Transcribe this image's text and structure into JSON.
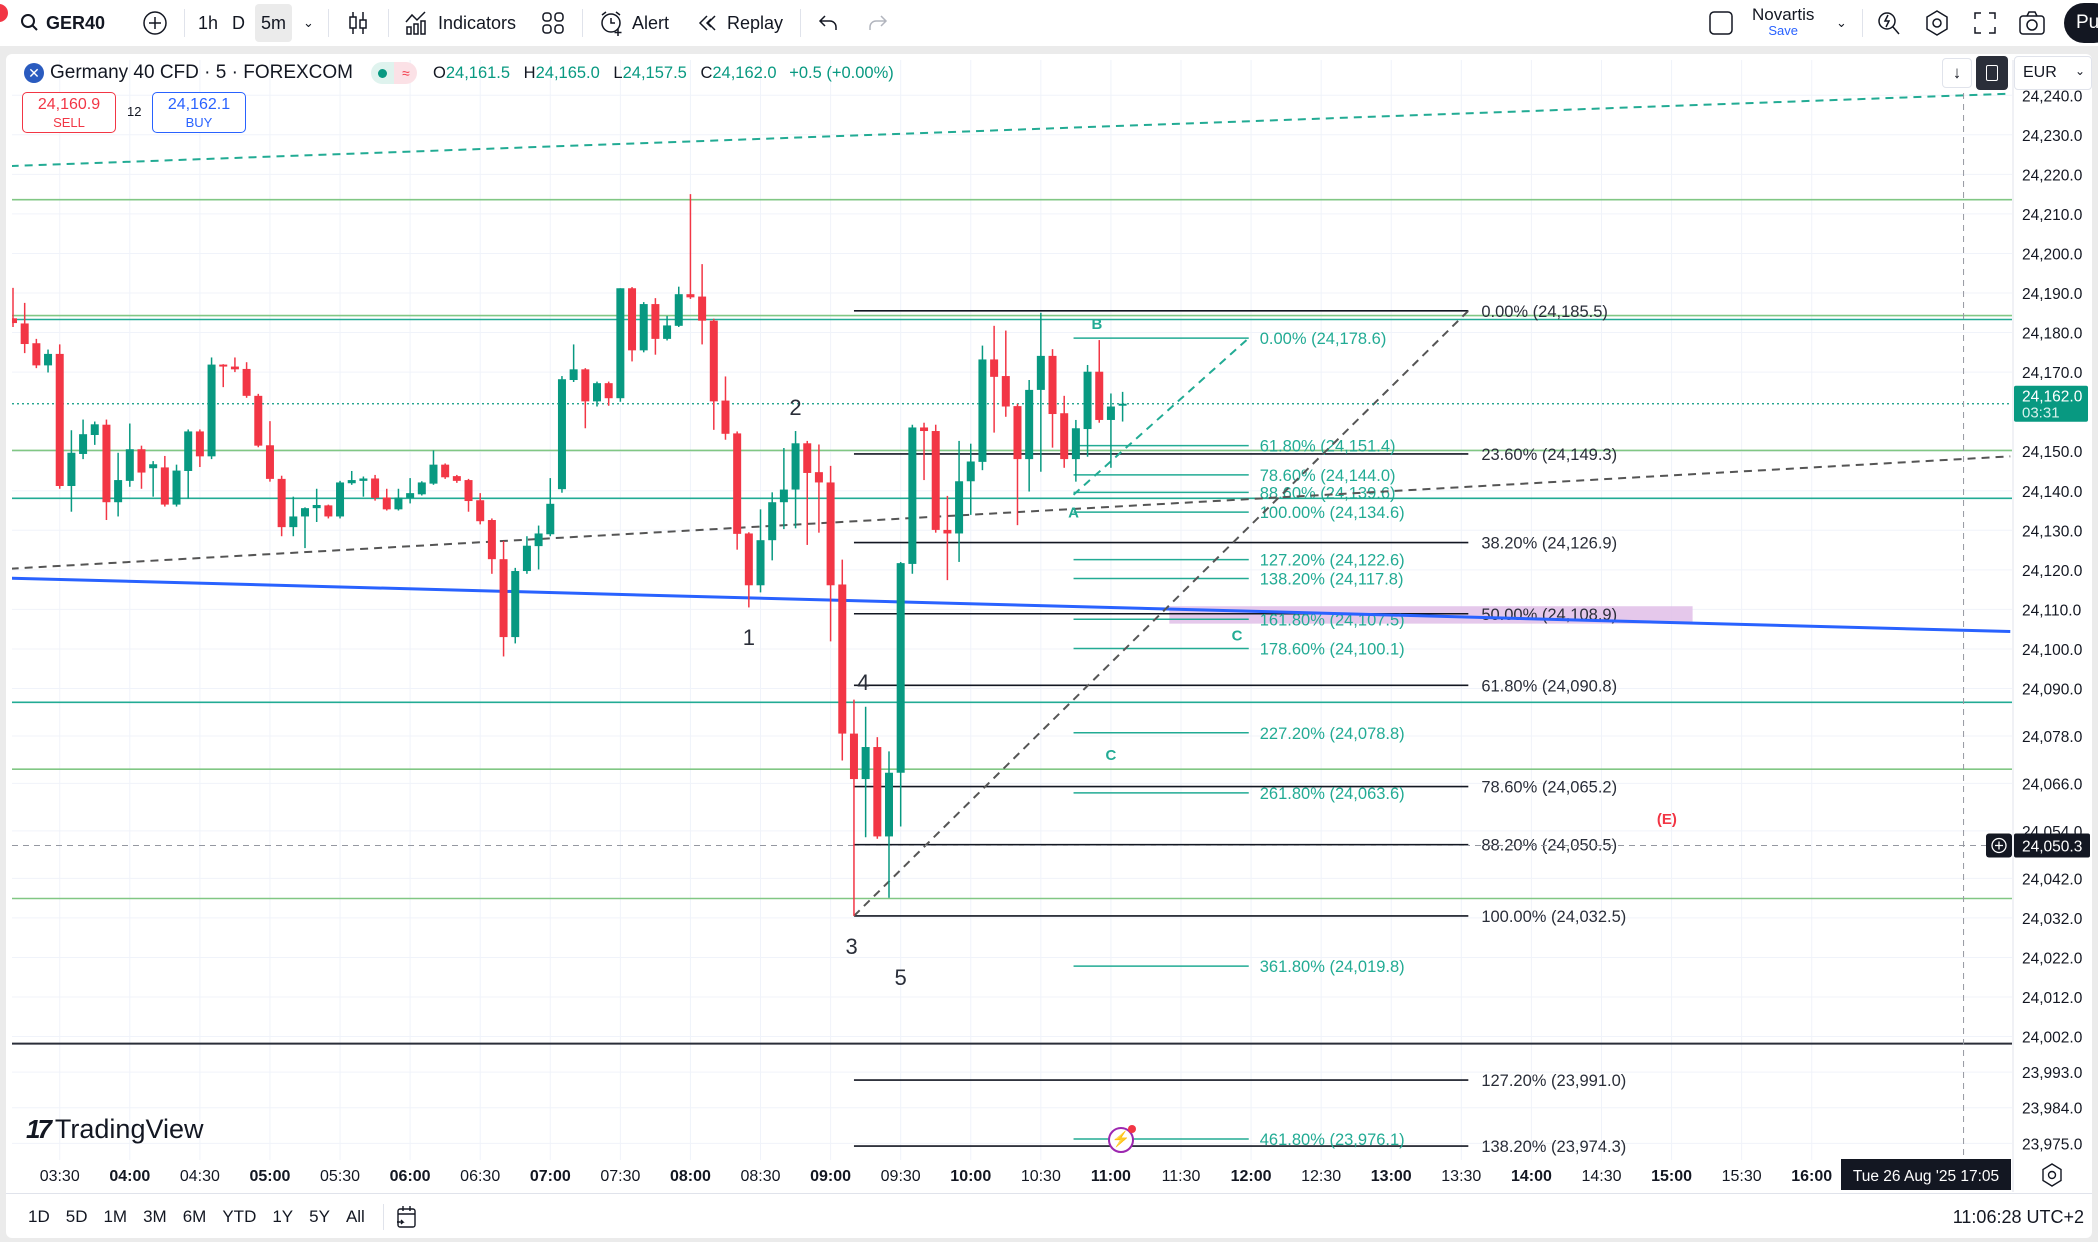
{
  "toolbar": {
    "symbol": "GER40",
    "intervals": [
      "1h",
      "D",
      "5m"
    ],
    "active_interval": "5m",
    "indicators_label": "Indicators",
    "alert_label": "Alert",
    "replay_label": "Replay",
    "layout_name": "Novartis",
    "layout_save": "Save",
    "publish_label": "Pu"
  },
  "legend": {
    "title": "Germany 40 CFD · 5 · FOREXCOM",
    "o_label": "O",
    "o": "24,161.5",
    "h_label": "H",
    "h": "24,165.0",
    "l_label": "L",
    "l": "24,157.5",
    "c_label": "C",
    "c": "24,162.0",
    "change": "+0.5 (+0.00%)",
    "sell_price": "24,160.9",
    "sell_label": "SELL",
    "spread": "12",
    "buy_price": "24,162.1",
    "buy_label": "BUY"
  },
  "currency": "EUR",
  "colors": {
    "up": "#089981",
    "down": "#f23645",
    "teal": "#22ab94",
    "green_line": "#81c784",
    "blue": "#2962ff",
    "pink": "#e1bee7",
    "fib_black": "#131722"
  },
  "chart_data": {
    "type": "candlestick",
    "interval_min": 5,
    "first_bar_time": "03:10",
    "y_range": [
      23972,
      24245
    ],
    "ohlc": [
      [
        24183.6,
        24191.3,
        24181.4,
        24182.4
      ],
      [
        24182.3,
        24187.5,
        24174.8,
        24177.1
      ],
      [
        24177.3,
        24178.4,
        24171.0,
        24171.7
      ],
      [
        24171.7,
        24175.7,
        24169.9,
        24174.6
      ],
      [
        24174.6,
        24177.0,
        24140.5,
        24141.2
      ],
      [
        24141.2,
        24155.3,
        24134.7,
        24149.6
      ],
      [
        24149.3,
        24158.0,
        24148.0,
        24154.3
      ],
      [
        24154.1,
        24157.5,
        24151.6,
        24156.8
      ],
      [
        24156.7,
        24158.0,
        24132.6,
        24137.1
      ],
      [
        24137.1,
        24149.6,
        24133.5,
        24142.7
      ],
      [
        24142.5,
        24157.0,
        24141.0,
        24150.5
      ],
      [
        24150.5,
        24151.4,
        24140.5,
        24144.6
      ],
      [
        24145.7,
        24147.5,
        24138.5,
        24146.7
      ],
      [
        24145.9,
        24148.8,
        24136.0,
        24136.5
      ],
      [
        24136.5,
        24146.6,
        24136.0,
        24145.1
      ],
      [
        24145.0,
        24155.5,
        24138.0,
        24155.0
      ],
      [
        24155.0,
        24155.5,
        24146.0,
        24148.7
      ],
      [
        24148.7,
        24173.7,
        24148.0,
        24171.9
      ],
      [
        24171.9,
        24172.0,
        24166.2,
        24171.4
      ],
      [
        24171.4,
        24173.7,
        24170.0,
        24170.7
      ],
      [
        24170.8,
        24172.5,
        24163.5,
        24164.0
      ],
      [
        24164.0,
        24164.5,
        24151.0,
        24151.4
      ],
      [
        24151.5,
        24157.6,
        24142.3,
        24143.0
      ],
      [
        24143.0,
        24143.8,
        24128.5,
        24130.8
      ],
      [
        24130.8,
        24138.5,
        24128.5,
        24133.5
      ],
      [
        24133.5,
        24135.8,
        24125.5,
        24135.6
      ],
      [
        24135.6,
        24140.5,
        24132.1,
        24136.4
      ],
      [
        24136.3,
        24136.5,
        24133.0,
        24133.5
      ],
      [
        24133.5,
        24142.5,
        24133.0,
        24142.1
      ],
      [
        24141.9,
        24145.0,
        24141.5,
        24142.7
      ],
      [
        24142.5,
        24143.6,
        24138.5,
        24143.1
      ],
      [
        24143.1,
        24144.0,
        24137.5,
        24138.2
      ],
      [
        24138.3,
        24140.5,
        24135.0,
        24135.3
      ],
      [
        24135.3,
        24140.5,
        24135.0,
        24138.3
      ],
      [
        24138.2,
        24143.2,
        24136.8,
        24139.4
      ],
      [
        24139.1,
        24142.4,
        24138.8,
        24142.1
      ],
      [
        24141.8,
        24150.2,
        24141.5,
        24146.6
      ],
      [
        24146.6,
        24146.9,
        24143.0,
        24143.4
      ],
      [
        24143.7,
        24144.0,
        24142.0,
        24142.5
      ],
      [
        24142.7,
        24143.0,
        24134.7,
        24137.4
      ],
      [
        24137.6,
        24139.4,
        24131.5,
        24132.3
      ],
      [
        24132.6,
        24133.0,
        24119.0,
        24122.7
      ],
      [
        24122.7,
        24127.3,
        24098.1,
        24103.0
      ],
      [
        24103.0,
        24120.5,
        24101.4,
        24119.7
      ],
      [
        24119.7,
        24128.5,
        24119.0,
        24126.1
      ],
      [
        24126.0,
        24131.2,
        24120.1,
        24129.2
      ],
      [
        24129.0,
        24143.2,
        24128.5,
        24136.7
      ],
      [
        24140.4,
        24169.0,
        24139.5,
        24168.2
      ],
      [
        24168.0,
        24177.0,
        24167.5,
        24170.7
      ],
      [
        24170.7,
        24171.0,
        24155.8,
        24162.6
      ],
      [
        24162.6,
        24167.6,
        24161.3,
        24167.2
      ],
      [
        24167.2,
        24167.6,
        24161.5,
        24163.4
      ],
      [
        24163.4,
        24191.2,
        24162.5,
        24191.2
      ],
      [
        24191.2,
        24191.5,
        24172.7,
        24175.5
      ],
      [
        24175.5,
        24187.7,
        24175.0,
        24187.2
      ],
      [
        24187.2,
        24188.7,
        24174.4,
        24178.4
      ],
      [
        24178.4,
        24184.2,
        24178.0,
        24181.8
      ],
      [
        24181.7,
        24191.6,
        24181.4,
        24189.7
      ],
      [
        24189.7,
        24215.0,
        24188.5,
        24188.9
      ],
      [
        24189.1,
        24197.3,
        24177.0,
        24183.0
      ],
      [
        24183.0,
        24183.5,
        24155.4,
        24162.6
      ],
      [
        24162.8,
        24168.9,
        24152.9,
        24154.4
      ],
      [
        24154.5,
        24155.0,
        24125.1,
        24129.1
      ],
      [
        24129.2,
        24129.5,
        24110.5,
        24116.1
      ],
      [
        24116.1,
        24135.3,
        24114.3,
        24127.5
      ],
      [
        24127.5,
        24139.6,
        24122.4,
        24137.1
      ],
      [
        24137.1,
        24150.8,
        24130.3,
        24140.3
      ],
      [
        24140.3,
        24155.1,
        24130.5,
        24152.0
      ],
      [
        24152.0,
        24152.6,
        24126.3,
        24144.5
      ],
      [
        24144.7,
        24151.7,
        24129.4,
        24142.1
      ],
      [
        24142.1,
        24146.3,
        24101.9,
        24116.1
      ],
      [
        24116.3,
        24122.6,
        24071.8,
        24078.6
      ],
      [
        24078.6,
        24087.2,
        24032.5,
        24067.1
      ],
      [
        24067.1,
        24085.4,
        24052.4,
        24075.2
      ],
      [
        24075.2,
        24077.7,
        24052.0,
        24052.6
      ],
      [
        24052.6,
        24074.1,
        24037.1,
        24068.7
      ],
      [
        24068.7,
        24122.0,
        24055.1,
        24121.7
      ],
      [
        24121.5,
        24156.7,
        24119.0,
        24156.0
      ],
      [
        24156.0,
        24157.2,
        24142.7,
        24155.1
      ],
      [
        24155.1,
        24156.7,
        24129.4,
        24130.1
      ],
      [
        24130.1,
        24138.7,
        24117.4,
        24129.2
      ],
      [
        24129.2,
        24152.6,
        24122.0,
        24142.4
      ],
      [
        24142.4,
        24151.9,
        24133.9,
        24147.4
      ],
      [
        24147.3,
        24176.7,
        24145.2,
        24173.2
      ],
      [
        24173.2,
        24181.7,
        24154.7,
        24168.8
      ],
      [
        24169.0,
        24180.5,
        24158.7,
        24161.3
      ],
      [
        24161.4,
        24162.0,
        24131.3,
        24148.0
      ],
      [
        24148.0,
        24168.0,
        24139.8,
        24165.5
      ],
      [
        24165.5,
        24185.0,
        24144.8,
        24174.1
      ],
      [
        24174.1,
        24175.8,
        24150.9,
        24159.4
      ],
      [
        24159.6,
        24164.0,
        24145.8,
        24148.0
      ],
      [
        24148.0,
        24157.9,
        24142.3,
        24155.8
      ],
      [
        24155.6,
        24171.8,
        24148.6,
        24170.1
      ],
      [
        24170.1,
        24178.1,
        24157.2,
        24157.9
      ],
      [
        24157.9,
        24164.6,
        24145.8,
        24161.3
      ],
      [
        24161.5,
        24165.0,
        24157.5,
        24162.0
      ]
    ],
    "price_ticks": [
      "24,240.0",
      "24,230.0",
      "24,220.0",
      "24,210.0",
      "24,200.0",
      "24,190.0",
      "24,180.0",
      "24,170.0",
      "24,150.0",
      "24,140.0",
      "24,130.0",
      "24,120.0",
      "24,110.0",
      "24,100.0",
      "24,090.0",
      "24,078.0",
      "24,066.0",
      "24,054.0",
      "24,042.0",
      "24,032.0",
      "24,022.0",
      "24,012.0",
      "24,002.0",
      "23,993.0",
      "23,984.0",
      "23,975.0"
    ],
    "time_ticks": [
      "03:30",
      "04:00",
      "04:30",
      "05:00",
      "05:30",
      "06:00",
      "06:30",
      "07:00",
      "07:30",
      "08:00",
      "08:30",
      "09:00",
      "09:30",
      "10:00",
      "10:30",
      "11:00",
      "11:30",
      "12:00",
      "12:30",
      "13:00",
      "13:30",
      "14:00",
      "14:30",
      "15:00",
      "15:30",
      "16:00"
    ],
    "last_price": "24,162.0",
    "last_price_value": 24162.0,
    "countdown": "03:31",
    "crosshair_price": "24,050.3",
    "crosshair_price_value": 24050.3,
    "crosshair_time": "17:05",
    "crosshair_date": "Tue 26 Aug '25  17:05",
    "horizontal_lines": [
      {
        "price": 24213.6,
        "color": "green"
      },
      {
        "price": 24184.3,
        "color": "green"
      },
      {
        "price": 24183.3,
        "color": "teal"
      },
      {
        "price": 24150.2,
        "color": "green"
      },
      {
        "price": 24138.1,
        "color": "teal"
      },
      {
        "price": 24086.5,
        "color": "teal"
      },
      {
        "price": 24069.6,
        "color": "green"
      },
      {
        "price": 24036.9,
        "color": "green"
      },
      {
        "price": 24000.2,
        "color": "black"
      }
    ],
    "trend_lines": [
      {
        "from": [
          "03:09",
          24222.1
        ],
        "to": [
          "17:25",
          24240.4
        ],
        "color": "teal",
        "dashed": true
      },
      {
        "from": [
          "03:09",
          24120.3
        ],
        "to": [
          "17:25",
          24148.7
        ],
        "color": "gray",
        "dashed": true
      },
      {
        "from": [
          "03:09",
          24117.9
        ],
        "to": [
          "17:25",
          24104.4
        ],
        "color": "blue",
        "dashed": false
      },
      {
        "from": [
          "09:10",
          24032.5
        ],
        "to": [
          "13:33",
          24185.5
        ],
        "color": "gray",
        "dashed": true
      },
      {
        "from": [
          "10:44",
          24139.0
        ],
        "to": [
          "11:59",
          24178.6
        ],
        "color": "teal",
        "dashed": true
      }
    ],
    "zone": {
      "from": "11:25",
      "to": "15:09",
      "top": 24110.8,
      "bottom": 24106.4
    },
    "fib_main": {
      "from": "09:10",
      "to": "13:33",
      "levels": [
        {
          "label": "0.00% (24,185.5)",
          "price": 24185.5
        },
        {
          "label": "23.60% (24,149.3)",
          "price": 24149.3
        },
        {
          "label": "38.20% (24,126.9)",
          "price": 24126.9
        },
        {
          "label": "50.00% (24,108.9)",
          "price": 24108.9
        },
        {
          "label": "61.80% (24,090.8)",
          "price": 24090.8
        },
        {
          "label": "78.60% (24,065.2)",
          "price": 24065.2
        },
        {
          "label": "88.20% (24,050.5)",
          "price": 24050.5
        },
        {
          "label": "100.00% (24,032.5)",
          "price": 24032.5
        },
        {
          "label": "127.20% (23,991.0)",
          "price": 23991.0
        },
        {
          "label": "138.20% (23,974.3)",
          "price": 23974.3
        }
      ]
    },
    "fib_ext": {
      "from": "10:44",
      "to": "11:59",
      "levels": [
        {
          "label": "0.00% (24,178.6)",
          "price": 24178.6
        },
        {
          "label": "61.80% (24,151.4)",
          "price": 24151.4
        },
        {
          "label": "78.60% (24,144.0)",
          "price": 24144.0
        },
        {
          "label": "88.60% (24,139.6)",
          "price": 24139.6
        },
        {
          "label": "100.00% (24,134.6)",
          "price": 24134.6
        },
        {
          "label": "127.20% (24,122.6)",
          "price": 24122.6
        },
        {
          "label": "138.20% (24,117.8)",
          "price": 24117.8
        },
        {
          "label": "161.80% (24,107.5)",
          "price": 24107.5
        },
        {
          "label": "178.60% (24,100.1)",
          "price": 24100.1
        },
        {
          "label": "227.20% (24,078.8)",
          "price": 24078.8
        },
        {
          "label": "261.80% (24,063.6)",
          "price": 24063.6
        },
        {
          "label": "361.80% (24,019.8)",
          "price": 24019.8
        },
        {
          "label": "461.80% (23,976.1)",
          "price": 23976.1
        }
      ]
    },
    "annotations": [
      {
        "text": "1",
        "time": "08:25",
        "price": 24103.0,
        "color": "black"
      },
      {
        "text": "2",
        "time": "08:45",
        "price": 24161.2,
        "color": "black"
      },
      {
        "text": "3",
        "time": "09:09",
        "price": 24024.9,
        "color": "black"
      },
      {
        "text": "4",
        "time": "09:14",
        "price": 24091.6,
        "color": "black"
      },
      {
        "text": "5",
        "time": "09:30",
        "price": 24017.1,
        "color": "black"
      },
      {
        "text": "A",
        "time": "10:44",
        "price": 24135.2,
        "color": "teal"
      },
      {
        "text": "B",
        "time": "10:54",
        "price": 24182.9,
        "color": "teal"
      },
      {
        "text": "C",
        "time": "11:54",
        "price": 24104.1,
        "color": "teal"
      },
      {
        "text": "C",
        "time": "11:00",
        "price": 24074.0,
        "color": "teal"
      },
      {
        "text": "(E)",
        "time": "14:58",
        "price": 24057.7,
        "color": "red"
      }
    ]
  },
  "watermark": "TradingView",
  "bottom": {
    "ranges": [
      "1D",
      "5D",
      "1M",
      "3M",
      "6M",
      "YTD",
      "1Y",
      "5Y",
      "All"
    ],
    "clock": "11:06:28 UTC+2"
  }
}
